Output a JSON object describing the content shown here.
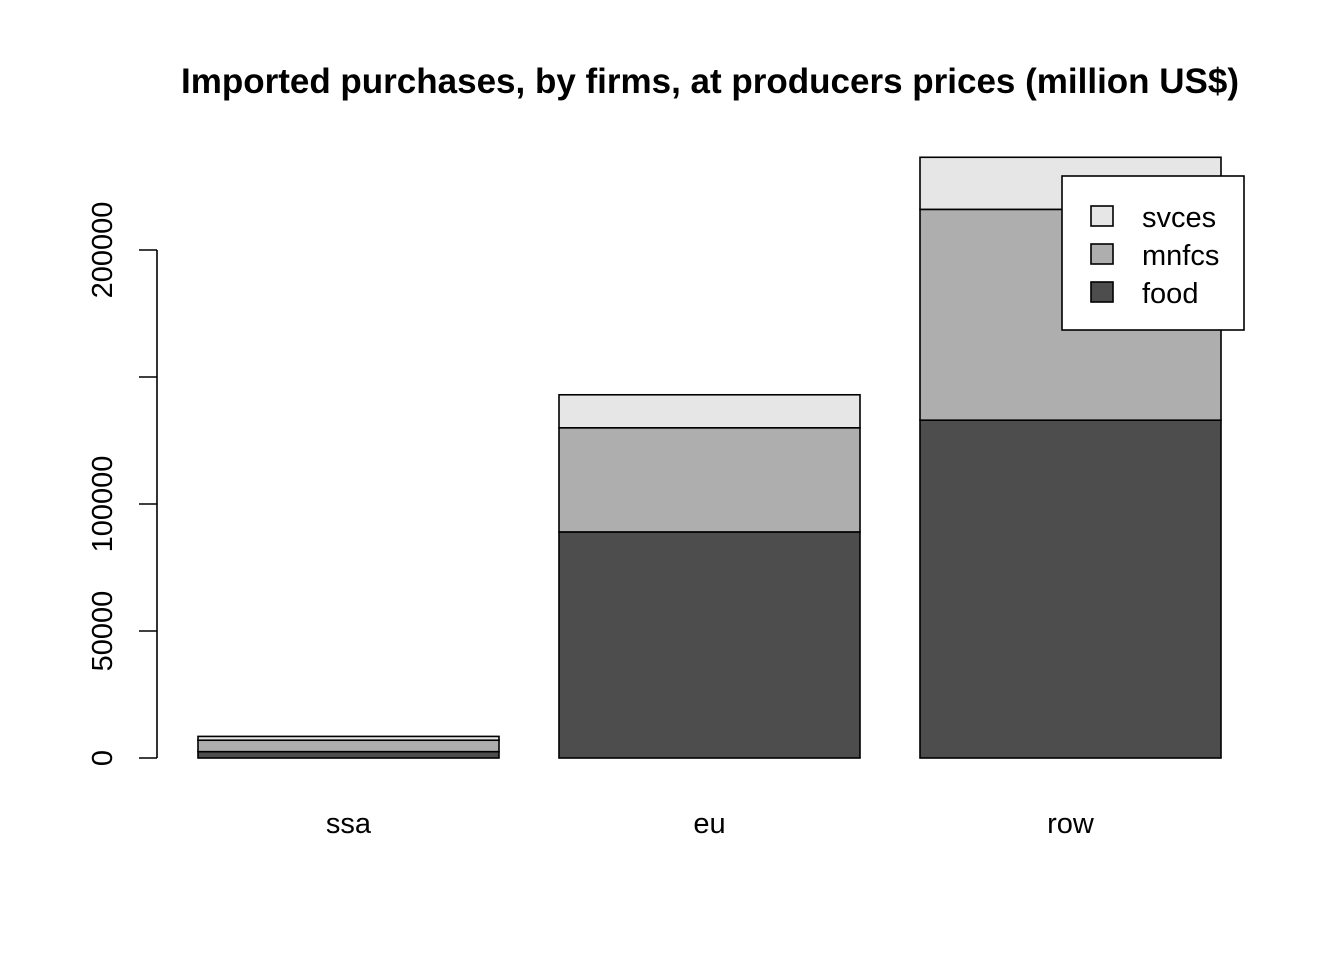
{
  "chart_data": {
    "type": "bar",
    "stacked": true,
    "title": "Imported purchases, by firms, at producers prices (million US$)",
    "xlabel": "",
    "ylabel": "",
    "categories": [
      "ssa",
      "eu",
      "row"
    ],
    "series": [
      {
        "name": "food",
        "values": [
          2500,
          89000,
          133000
        ],
        "color": "#4d4d4d"
      },
      {
        "name": "mnfcs",
        "values": [
          4500,
          41000,
          83000
        ],
        "color": "#aeaeae"
      },
      {
        "name": "svces",
        "values": [
          1500,
          13000,
          20500
        ],
        "color": "#e6e6e6"
      }
    ],
    "y_ticks": [
      0,
      50000,
      100000,
      150000,
      200000
    ],
    "y_tick_labels": [
      "0",
      "50000",
      "100000",
      "",
      "200000"
    ],
    "ylim": [
      0,
      240000
    ],
    "grid": false,
    "legend": {
      "position": "top-right",
      "order": [
        "svces",
        "mnfcs",
        "food"
      ]
    }
  }
}
